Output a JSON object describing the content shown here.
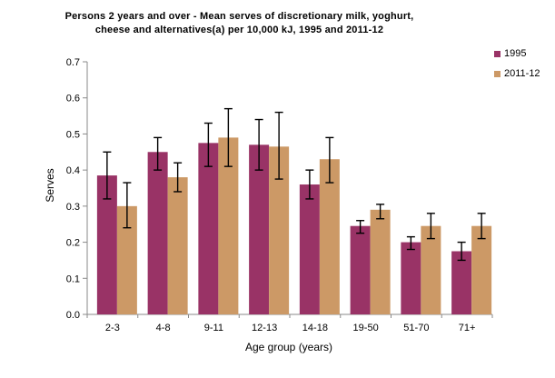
{
  "title": {
    "line1": "Persons 2 years and over - Mean serves of discretionary milk, yoghurt,",
    "line2": "cheese and alternatives(a) per 10,000 kJ, 1995 and 2011-12"
  },
  "chart_data": {
    "type": "bar",
    "title": "Persons 2 years and over - Mean serves of discretionary milk, yoghurt, cheese and alternatives(a) per 10,000 kJ, 1995 and 2011-12",
    "xlabel": "Age group (years)",
    "ylabel": "Serves",
    "ylim": [
      0,
      0.7
    ],
    "ytick_labels": [
      "0.0",
      "0.1",
      "0.2",
      "0.3",
      "0.4",
      "0.5",
      "0.6",
      "0.7"
    ],
    "grid": false,
    "legend_position": "top-right",
    "categories": [
      "2-3",
      "4-8",
      "9-11",
      "12-13",
      "14-18",
      "19-50",
      "51-70",
      "71+"
    ],
    "series": [
      {
        "name": "1995",
        "color": "#993366",
        "values": [
          0.385,
          0.45,
          0.475,
          0.47,
          0.36,
          0.245,
          0.2,
          0.175
        ],
        "error_low": [
          0.32,
          0.4,
          0.41,
          0.4,
          0.32,
          0.225,
          0.18,
          0.15
        ],
        "error_high": [
          0.45,
          0.49,
          0.53,
          0.54,
          0.4,
          0.26,
          0.215,
          0.2
        ]
      },
      {
        "name": "2011-12",
        "color": "#CC9966",
        "values": [
          0.3,
          0.38,
          0.49,
          0.465,
          0.43,
          0.29,
          0.245,
          0.245
        ],
        "error_low": [
          0.24,
          0.34,
          0.41,
          0.375,
          0.365,
          0.265,
          0.21,
          0.21
        ],
        "error_high": [
          0.365,
          0.42,
          0.57,
          0.56,
          0.49,
          0.305,
          0.28,
          0.28
        ]
      }
    ],
    "error_bar_color": "#000000",
    "axis_color": "#8a8a8a"
  }
}
